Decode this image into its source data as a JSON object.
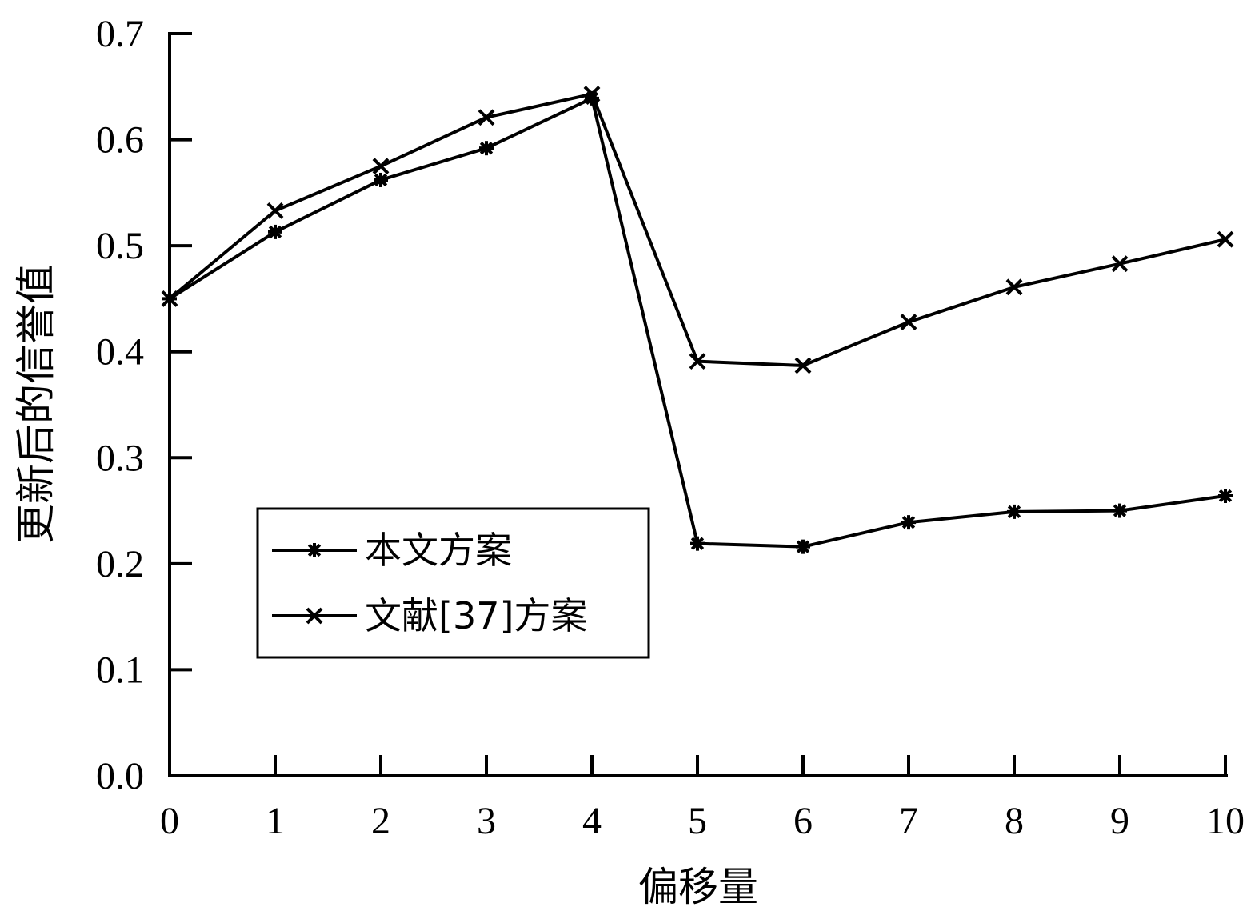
{
  "chart_data": {
    "type": "line",
    "xlabel": "偏移量",
    "ylabel": "更新后的信誉值",
    "x": [
      0,
      1,
      2,
      3,
      4,
      5,
      6,
      7,
      8,
      9,
      10
    ],
    "xlim": [
      0,
      10
    ],
    "ylim": [
      0.0,
      0.7
    ],
    "xticks": [
      "0",
      "1",
      "2",
      "3",
      "4",
      "5",
      "6",
      "7",
      "8",
      "9",
      "10"
    ],
    "yticks": [
      "0.0",
      "0.1",
      "0.2",
      "0.3",
      "0.4",
      "0.5",
      "0.6",
      "0.7"
    ],
    "grid": false,
    "legend_position": "center-left",
    "series": [
      {
        "name": "本文方案",
        "marker": "asterisk",
        "color": "#000000",
        "values": [
          0.45,
          0.513,
          0.562,
          0.592,
          0.639,
          0.219,
          0.216,
          0.239,
          0.249,
          0.25,
          0.264
        ]
      },
      {
        "name": "文献[37]方案",
        "marker": "x",
        "color": "#000000",
        "values": [
          0.45,
          0.533,
          0.575,
          0.621,
          0.643,
          0.391,
          0.387,
          0.428,
          0.461,
          0.483,
          0.506
        ]
      }
    ]
  }
}
